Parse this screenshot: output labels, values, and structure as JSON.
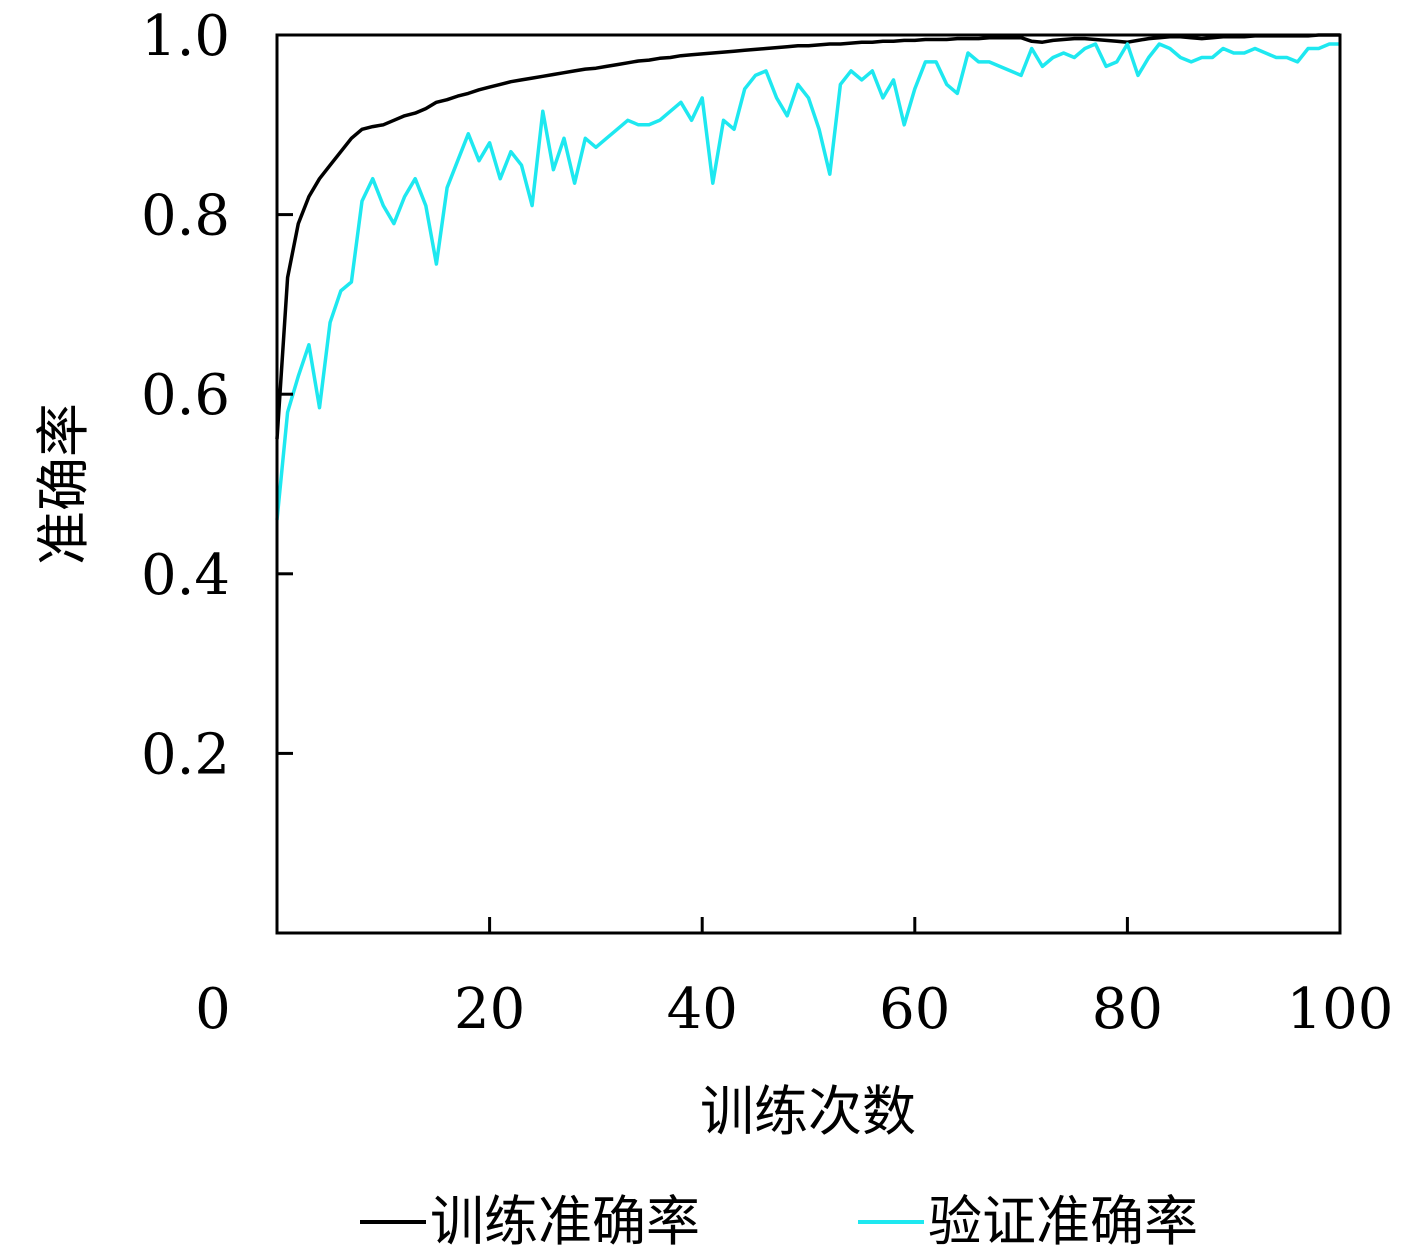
{
  "chart_data": {
    "type": "line",
    "xlabel": "训练次数",
    "ylabel": "准确率",
    "xlim": [
      0,
      100
    ],
    "ylim": [
      0,
      1.0
    ],
    "x_ticks": [
      0,
      20,
      40,
      60,
      80,
      100
    ],
    "x_tick_labels": [
      "0",
      "20",
      "40",
      "60",
      "80",
      "100"
    ],
    "y_ticks": [
      0.2,
      0.4,
      0.6,
      0.8,
      1.0
    ],
    "y_tick_labels": [
      "0.2",
      "0.4",
      "0.6",
      "0.8",
      "1.0"
    ],
    "grid": false,
    "legend_position": "bottom",
    "series": [
      {
        "name": "训练准确率",
        "color": "#000000",
        "x": [
          0,
          1,
          2,
          3,
          4,
          5,
          6,
          7,
          8,
          9,
          10,
          11,
          12,
          13,
          14,
          15,
          16,
          17,
          18,
          19,
          20,
          21,
          22,
          23,
          24,
          25,
          26,
          27,
          28,
          29,
          30,
          31,
          32,
          33,
          34,
          35,
          36,
          37,
          38,
          39,
          40,
          41,
          42,
          43,
          44,
          45,
          46,
          47,
          48,
          49,
          50,
          51,
          52,
          53,
          54,
          55,
          56,
          57,
          58,
          59,
          60,
          61,
          62,
          63,
          64,
          65,
          66,
          67,
          68,
          69,
          70,
          71,
          72,
          73,
          74,
          75,
          76,
          77,
          78,
          79,
          80,
          81,
          82,
          83,
          84,
          85,
          86,
          87,
          88,
          89,
          90,
          91,
          92,
          93,
          94,
          95,
          96,
          97,
          98,
          99,
          100
        ],
        "y": [
          0.55,
          0.73,
          0.79,
          0.82,
          0.84,
          0.855,
          0.87,
          0.885,
          0.895,
          0.898,
          0.9,
          0.905,
          0.91,
          0.913,
          0.918,
          0.925,
          0.928,
          0.932,
          0.935,
          0.939,
          0.942,
          0.945,
          0.948,
          0.95,
          0.952,
          0.954,
          0.956,
          0.958,
          0.96,
          0.962,
          0.963,
          0.965,
          0.967,
          0.969,
          0.971,
          0.972,
          0.974,
          0.975,
          0.977,
          0.978,
          0.979,
          0.98,
          0.981,
          0.982,
          0.983,
          0.984,
          0.985,
          0.986,
          0.987,
          0.988,
          0.988,
          0.989,
          0.99,
          0.99,
          0.991,
          0.992,
          0.992,
          0.993,
          0.993,
          0.994,
          0.994,
          0.995,
          0.995,
          0.995,
          0.996,
          0.996,
          0.996,
          0.997,
          0.997,
          0.997,
          0.997,
          0.993,
          0.992,
          0.994,
          0.995,
          0.996,
          0.996,
          0.995,
          0.994,
          0.993,
          0.992,
          0.994,
          0.996,
          0.997,
          0.998,
          0.998,
          0.997,
          0.996,
          0.997,
          0.998,
          0.998,
          0.998,
          0.999,
          0.999,
          0.999,
          0.999,
          0.999,
          0.999,
          1.0,
          1.0,
          1.0
        ]
      },
      {
        "name": "验证准确率",
        "color": "#1ee8f0",
        "x": [
          0,
          1,
          2,
          3,
          4,
          5,
          6,
          7,
          8,
          9,
          10,
          11,
          12,
          13,
          14,
          15,
          16,
          17,
          18,
          19,
          20,
          21,
          22,
          23,
          24,
          25,
          26,
          27,
          28,
          29,
          30,
          31,
          32,
          33,
          34,
          35,
          36,
          37,
          38,
          39,
          40,
          41,
          42,
          43,
          44,
          45,
          46,
          47,
          48,
          49,
          50,
          51,
          52,
          53,
          54,
          55,
          56,
          57,
          58,
          59,
          60,
          61,
          62,
          63,
          64,
          65,
          66,
          67,
          68,
          69,
          70,
          71,
          72,
          73,
          74,
          75,
          76,
          77,
          78,
          79,
          80,
          81,
          82,
          83,
          84,
          85,
          86,
          87,
          88,
          89,
          90,
          91,
          92,
          93,
          94,
          95,
          96,
          97,
          98,
          99,
          100
        ],
        "y": [
          0.46,
          0.58,
          0.62,
          0.655,
          0.585,
          0.68,
          0.715,
          0.725,
          0.815,
          0.84,
          0.81,
          0.79,
          0.82,
          0.84,
          0.81,
          0.745,
          0.83,
          0.86,
          0.89,
          0.86,
          0.88,
          0.84,
          0.87,
          0.855,
          0.81,
          0.915,
          0.85,
          0.885,
          0.835,
          0.885,
          0.875,
          0.885,
          0.895,
          0.905,
          0.9,
          0.9,
          0.905,
          0.915,
          0.925,
          0.905,
          0.93,
          0.835,
          0.905,
          0.895,
          0.94,
          0.955,
          0.96,
          0.93,
          0.91,
          0.945,
          0.93,
          0.895,
          0.845,
          0.945,
          0.96,
          0.95,
          0.96,
          0.93,
          0.95,
          0.9,
          0.94,
          0.97,
          0.97,
          0.945,
          0.935,
          0.98,
          0.97,
          0.97,
          0.965,
          0.96,
          0.955,
          0.985,
          0.965,
          0.975,
          0.98,
          0.975,
          0.985,
          0.99,
          0.965,
          0.97,
          0.99,
          0.955,
          0.975,
          0.99,
          0.985,
          0.975,
          0.97,
          0.975,
          0.975,
          0.985,
          0.98,
          0.98,
          0.985,
          0.98,
          0.975,
          0.975,
          0.97,
          0.985,
          0.985,
          0.99,
          0.99
        ]
      }
    ]
  }
}
